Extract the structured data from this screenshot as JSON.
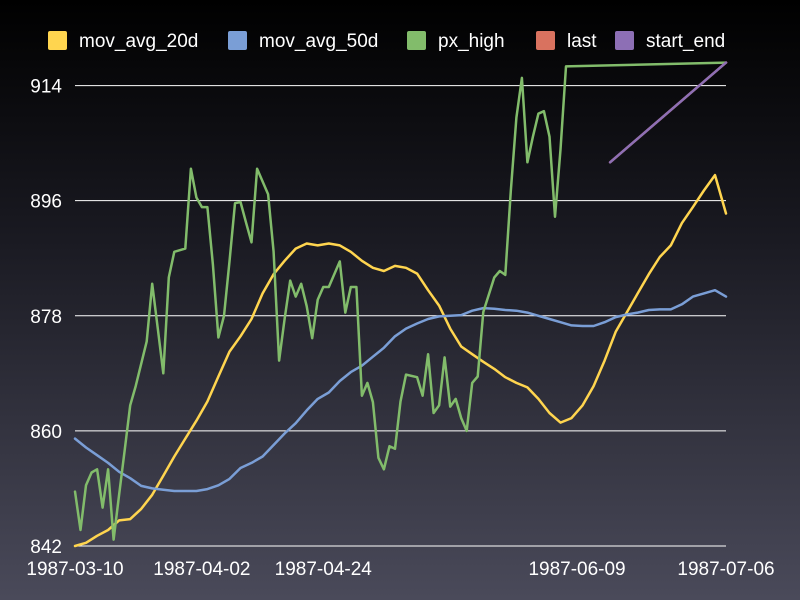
{
  "chart_data": {
    "type": "line",
    "title": "",
    "xlabel": "",
    "ylabel": "",
    "ylim": [
      842,
      918
    ],
    "yticks": [
      "842",
      "860",
      "878",
      "896",
      "914"
    ],
    "xlim": [
      "1987-03-10",
      "1987-07-06"
    ],
    "xticks": [
      "1987-03-10",
      "1987-04-02",
      "1987-04-24",
      "1987-06-09",
      "1987-07-06"
    ],
    "grid": "horizontal",
    "legend_position": "top",
    "series": [
      {
        "name": "mov_avg_20d",
        "color": "#ffd54f",
        "points": [
          [
            "1987-03-10",
            842.0
          ],
          [
            "1987-03-12",
            842.5
          ],
          [
            "1987-03-14",
            843.6
          ],
          [
            "1987-03-16",
            844.5
          ],
          [
            "1987-03-18",
            846.0
          ],
          [
            "1987-03-20",
            846.2
          ],
          [
            "1987-03-22",
            847.8
          ],
          [
            "1987-03-24",
            850.0
          ],
          [
            "1987-03-26",
            853.0
          ],
          [
            "1987-03-28",
            856.0
          ],
          [
            "1987-03-30",
            858.8
          ],
          [
            "1987-04-01",
            861.6
          ],
          [
            "1987-04-03",
            864.6
          ],
          [
            "1987-04-05",
            868.5
          ],
          [
            "1987-04-07",
            872.4
          ],
          [
            "1987-04-09",
            874.8
          ],
          [
            "1987-04-11",
            877.5
          ],
          [
            "1987-04-13",
            881.5
          ],
          [
            "1987-04-15",
            884.5
          ],
          [
            "1987-04-17",
            886.6
          ],
          [
            "1987-04-19",
            888.5
          ],
          [
            "1987-04-21",
            889.3
          ],
          [
            "1987-04-23",
            889.0
          ],
          [
            "1987-04-25",
            889.3
          ],
          [
            "1987-04-27",
            889.0
          ],
          [
            "1987-04-29",
            888.0
          ],
          [
            "1987-05-01",
            886.6
          ],
          [
            "1987-05-03",
            885.5
          ],
          [
            "1987-05-05",
            885.0
          ],
          [
            "1987-05-07",
            885.8
          ],
          [
            "1987-05-09",
            885.5
          ],
          [
            "1987-05-11",
            884.6
          ],
          [
            "1987-05-13",
            882.0
          ],
          [
            "1987-05-15",
            879.6
          ],
          [
            "1987-05-17",
            876.0
          ],
          [
            "1987-05-19",
            873.2
          ],
          [
            "1987-05-21",
            872.0
          ],
          [
            "1987-05-23",
            870.8
          ],
          [
            "1987-05-25",
            869.7
          ],
          [
            "1987-05-27",
            868.4
          ],
          [
            "1987-05-29",
            867.5
          ],
          [
            "1987-05-31",
            866.8
          ],
          [
            "1987-06-02",
            865.0
          ],
          [
            "1987-06-04",
            862.8
          ],
          [
            "1987-06-06",
            861.3
          ],
          [
            "1987-06-08",
            862.0
          ],
          [
            "1987-06-10",
            864.0
          ],
          [
            "1987-06-12",
            867.0
          ],
          [
            "1987-06-14",
            871.0
          ],
          [
            "1987-06-16",
            875.5
          ],
          [
            "1987-06-18",
            878.5
          ],
          [
            "1987-06-20",
            881.5
          ],
          [
            "1987-06-22",
            884.5
          ],
          [
            "1987-06-24",
            887.2
          ],
          [
            "1987-06-26",
            889.0
          ],
          [
            "1987-06-28",
            892.5
          ],
          [
            "1987-06-30",
            895.0
          ],
          [
            "1987-07-02",
            897.6
          ],
          [
            "1987-07-04",
            900.0
          ],
          [
            "1987-07-06",
            894.0
          ]
        ]
      },
      {
        "name": "mov_avg_50d",
        "color": "#7a9ed6",
        "points": [
          [
            "1987-03-10",
            858.8
          ],
          [
            "1987-03-12",
            857.4
          ],
          [
            "1987-03-14",
            856.2
          ],
          [
            "1987-03-16",
            855.0
          ],
          [
            "1987-03-18",
            853.6
          ],
          [
            "1987-03-20",
            852.6
          ],
          [
            "1987-03-22",
            851.4
          ],
          [
            "1987-03-24",
            851.0
          ],
          [
            "1987-03-26",
            850.8
          ],
          [
            "1987-03-28",
            850.6
          ],
          [
            "1987-03-30",
            850.6
          ],
          [
            "1987-04-01",
            850.6
          ],
          [
            "1987-04-03",
            850.9
          ],
          [
            "1987-04-05",
            851.5
          ],
          [
            "1987-04-07",
            852.5
          ],
          [
            "1987-04-09",
            854.2
          ],
          [
            "1987-04-11",
            855.0
          ],
          [
            "1987-04-13",
            856.0
          ],
          [
            "1987-04-15",
            857.8
          ],
          [
            "1987-04-17",
            859.6
          ],
          [
            "1987-04-19",
            861.2
          ],
          [
            "1987-04-21",
            863.2
          ],
          [
            "1987-04-23",
            865.0
          ],
          [
            "1987-04-25",
            866.0
          ],
          [
            "1987-04-27",
            867.8
          ],
          [
            "1987-04-29",
            869.2
          ],
          [
            "1987-05-01",
            870.2
          ],
          [
            "1987-05-03",
            871.6
          ],
          [
            "1987-05-05",
            873.0
          ],
          [
            "1987-05-07",
            874.8
          ],
          [
            "1987-05-09",
            876.0
          ],
          [
            "1987-05-11",
            876.8
          ],
          [
            "1987-05-13",
            877.5
          ],
          [
            "1987-05-15",
            877.9
          ],
          [
            "1987-05-17",
            878.0
          ],
          [
            "1987-05-19",
            878.1
          ],
          [
            "1987-05-21",
            878.8
          ],
          [
            "1987-05-23",
            879.2
          ],
          [
            "1987-05-25",
            879.1
          ],
          [
            "1987-05-27",
            878.9
          ],
          [
            "1987-05-29",
            878.8
          ],
          [
            "1987-05-31",
            878.5
          ],
          [
            "1987-06-02",
            878.0
          ],
          [
            "1987-06-04",
            877.5
          ],
          [
            "1987-06-06",
            877.0
          ],
          [
            "1987-06-08",
            876.5
          ],
          [
            "1987-06-10",
            876.4
          ],
          [
            "1987-06-12",
            876.4
          ],
          [
            "1987-06-14",
            877.0
          ],
          [
            "1987-06-16",
            877.8
          ],
          [
            "1987-06-18",
            878.2
          ],
          [
            "1987-06-20",
            878.5
          ],
          [
            "1987-06-22",
            878.9
          ],
          [
            "1987-06-24",
            879.0
          ],
          [
            "1987-06-26",
            879.0
          ],
          [
            "1987-06-28",
            879.8
          ],
          [
            "1987-06-30",
            881.0
          ],
          [
            "1987-07-02",
            881.5
          ],
          [
            "1987-07-04",
            882.0
          ],
          [
            "1987-07-06",
            881.0
          ]
        ]
      },
      {
        "name": "px_high",
        "color": "#82bc6b",
        "points": [
          [
            "1987-03-10",
            850.5
          ],
          [
            "1987-03-11",
            844.5
          ],
          [
            "1987-03-12",
            851.5
          ],
          [
            "1987-03-13",
            853.5
          ],
          [
            "1987-03-14",
            854.0
          ],
          [
            "1987-03-15",
            848.0
          ],
          [
            "1987-03-16",
            854.0
          ],
          [
            "1987-03-17",
            843.0
          ],
          [
            "1987-03-18",
            850.0
          ],
          [
            "1987-03-19",
            857.0
          ],
          [
            "1987-03-20",
            864.0
          ],
          [
            "1987-03-21",
            867.0
          ],
          [
            "1987-03-23",
            874.0
          ],
          [
            "1987-03-24",
            883.0
          ],
          [
            "1987-03-25",
            876.0
          ],
          [
            "1987-03-26",
            869.0
          ],
          [
            "1987-03-27",
            884.0
          ],
          [
            "1987-03-28",
            888.0
          ],
          [
            "1987-03-30",
            888.5
          ],
          [
            "1987-03-31",
            901.0
          ],
          [
            "1987-04-01",
            896.5
          ],
          [
            "1987-04-02",
            895.0
          ],
          [
            "1987-04-03",
            895.0
          ],
          [
            "1987-04-04",
            886.0
          ],
          [
            "1987-04-05",
            874.6
          ],
          [
            "1987-04-06",
            878.0
          ],
          [
            "1987-04-07",
            886.5
          ],
          [
            "1987-04-08",
            895.6
          ],
          [
            "1987-04-09",
            895.8
          ],
          [
            "1987-04-10",
            892.6
          ],
          [
            "1987-04-11",
            889.5
          ],
          [
            "1987-04-12",
            901.0
          ],
          [
            "1987-04-14",
            897.0
          ],
          [
            "1987-04-15",
            888.0
          ],
          [
            "1987-04-16",
            871.0
          ],
          [
            "1987-04-17",
            877.5
          ],
          [
            "1987-04-18",
            883.5
          ],
          [
            "1987-04-19",
            881.0
          ],
          [
            "1987-04-20",
            883.0
          ],
          [
            "1987-04-21",
            879.5
          ],
          [
            "1987-04-22",
            874.5
          ],
          [
            "1987-04-23",
            880.5
          ],
          [
            "1987-04-24",
            882.5
          ],
          [
            "1987-04-25",
            882.5
          ],
          [
            "1987-04-27",
            886.5
          ],
          [
            "1987-04-28",
            878.5
          ],
          [
            "1987-04-29",
            882.5
          ],
          [
            "1987-04-30",
            882.5
          ],
          [
            "1987-05-01",
            865.5
          ],
          [
            "1987-05-02",
            867.5
          ],
          [
            "1987-05-03",
            864.5
          ],
          [
            "1987-05-04",
            855.8
          ],
          [
            "1987-05-05",
            854.0
          ],
          [
            "1987-05-06",
            857.6
          ],
          [
            "1987-05-07",
            857.2
          ],
          [
            "1987-05-08",
            864.6
          ],
          [
            "1987-05-09",
            868.8
          ],
          [
            "1987-05-11",
            868.4
          ],
          [
            "1987-05-12",
            865.5
          ],
          [
            "1987-05-13",
            872.0
          ],
          [
            "1987-05-14",
            862.8
          ],
          [
            "1987-05-15",
            864.0
          ],
          [
            "1987-05-16",
            871.5
          ],
          [
            "1987-05-17",
            863.8
          ],
          [
            "1987-05-18",
            865.0
          ],
          [
            "1987-05-19",
            862.0
          ],
          [
            "1987-05-20",
            860.0
          ],
          [
            "1987-05-21",
            867.5
          ],
          [
            "1987-05-22",
            868.5
          ],
          [
            "1987-05-23",
            878.6
          ],
          [
            "1987-05-25",
            884.0
          ],
          [
            "1987-05-26",
            885.0
          ],
          [
            "1987-05-27",
            884.4
          ],
          [
            "1987-05-28",
            897.5
          ],
          [
            "1987-05-29",
            909.0
          ],
          [
            "1987-05-30",
            915.2
          ],
          [
            "1987-05-31",
            902.0
          ],
          [
            "1987-06-01",
            906.0
          ],
          [
            "1987-06-02",
            909.6
          ],
          [
            "1987-06-03",
            910.0
          ],
          [
            "1987-06-04",
            906.0
          ],
          [
            "1987-06-05",
            893.5
          ],
          [
            "1987-06-06",
            904.0
          ],
          [
            "1987-06-07",
            917.0
          ],
          [
            "1987-07-06",
            917.6
          ]
        ]
      },
      {
        "name": "last",
        "color": "#d9725f",
        "points": [
          [
            "1987-06-15",
            902.0
          ],
          [
            "1987-07-06",
            917.6
          ]
        ]
      },
      {
        "name": "start_end",
        "color": "#8d6fb5",
        "points": [
          [
            "1987-06-15",
            902.0
          ],
          [
            "1987-07-06",
            917.6
          ]
        ]
      }
    ]
  }
}
